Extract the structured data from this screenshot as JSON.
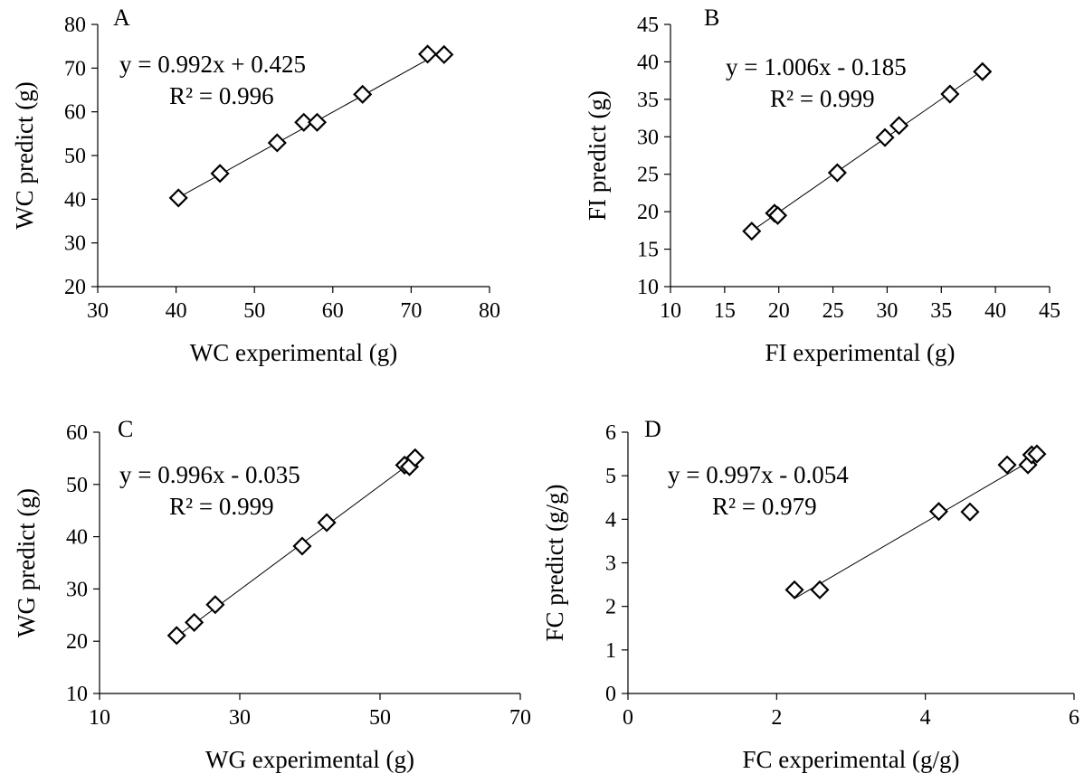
{
  "chart_data": [
    {
      "type": "scatter",
      "panel": "A",
      "xlabel": "WC experimental (g)",
      "ylabel": "WC predict (g)",
      "xlim": [
        30,
        80
      ],
      "ylim": [
        20,
        80
      ],
      "xticks": [
        30,
        40,
        50,
        60,
        70,
        80
      ],
      "yticks": [
        20,
        30,
        40,
        50,
        60,
        70,
        80
      ],
      "equation": "y = 0.992x + 0.425",
      "r2": "R² = 0.996",
      "trendline": {
        "slope": 0.992,
        "intercept": 0.425
      },
      "points": [
        {
          "x": 40.3,
          "y": 40.3
        },
        {
          "x": 45.6,
          "y": 45.9
        },
        {
          "x": 52.9,
          "y": 52.9
        },
        {
          "x": 56.3,
          "y": 57.6
        },
        {
          "x": 58.0,
          "y": 57.6
        },
        {
          "x": 63.8,
          "y": 64.0
        },
        {
          "x": 72.1,
          "y": 73.2
        },
        {
          "x": 74.2,
          "y": 73.1
        }
      ]
    },
    {
      "type": "scatter",
      "panel": "B",
      "xlabel": "FI experimental (g)",
      "ylabel": "FI predict (g)",
      "xlim": [
        10,
        45
      ],
      "ylim": [
        10,
        45
      ],
      "xticks": [
        10,
        15,
        20,
        25,
        30,
        35,
        40,
        45
      ],
      "yticks": [
        10,
        15,
        20,
        25,
        30,
        35,
        40,
        45
      ],
      "equation": "y = 1.006x - 0.185",
      "r2": "R² = 0.999",
      "trendline": {
        "slope": 1.006,
        "intercept": -0.185
      },
      "points": [
        {
          "x": 17.5,
          "y": 17.4
        },
        {
          "x": 19.6,
          "y": 19.8
        },
        {
          "x": 19.9,
          "y": 19.5
        },
        {
          "x": 25.4,
          "y": 25.2
        },
        {
          "x": 29.8,
          "y": 29.9
        },
        {
          "x": 31.1,
          "y": 31.5
        },
        {
          "x": 35.8,
          "y": 35.7
        },
        {
          "x": 38.8,
          "y": 38.7
        }
      ]
    },
    {
      "type": "scatter",
      "panel": "C",
      "xlabel": "WG experimental (g)",
      "ylabel": "WG predict  (g)",
      "xlim": [
        10,
        70
      ],
      "ylim": [
        10,
        60
      ],
      "xticks": [
        10,
        30,
        50,
        70
      ],
      "yticks": [
        10,
        20,
        30,
        40,
        50,
        60
      ],
      "equation": "y = 0.996x - 0.035",
      "r2": "R² = 0.999",
      "trendline": {
        "slope": 0.996,
        "intercept": -0.035
      },
      "points": [
        {
          "x": 21.0,
          "y": 21.1
        },
        {
          "x": 23.5,
          "y": 23.6
        },
        {
          "x": 26.5,
          "y": 27.0
        },
        {
          "x": 38.9,
          "y": 38.2
        },
        {
          "x": 42.4,
          "y": 42.7
        },
        {
          "x": 53.5,
          "y": 53.7
        },
        {
          "x": 54.2,
          "y": 53.4
        },
        {
          "x": 55.0,
          "y": 55.1
        }
      ]
    },
    {
      "type": "scatter",
      "panel": "D",
      "xlabel": "FC experimental (g/g)",
      "ylabel": "FC predict (g/g)",
      "xlim": [
        0,
        6
      ],
      "ylim": [
        0,
        6
      ],
      "xticks": [
        0,
        2,
        4,
        6
      ],
      "yticks": [
        0,
        1,
        2,
        3,
        4,
        5,
        6
      ],
      "equation": "y = 0.997x - 0.054",
      "r2": "R² = 0.979",
      "trendline": {
        "slope": 0.997,
        "intercept": -0.054
      },
      "points": [
        {
          "x": 2.24,
          "y": 2.38
        },
        {
          "x": 2.58,
          "y": 2.38
        },
        {
          "x": 4.18,
          "y": 4.18
        },
        {
          "x": 4.6,
          "y": 4.17
        },
        {
          "x": 5.1,
          "y": 5.25
        },
        {
          "x": 5.38,
          "y": 5.25
        },
        {
          "x": 5.43,
          "y": 5.48
        },
        {
          "x": 5.5,
          "y": 5.5
        }
      ]
    }
  ]
}
